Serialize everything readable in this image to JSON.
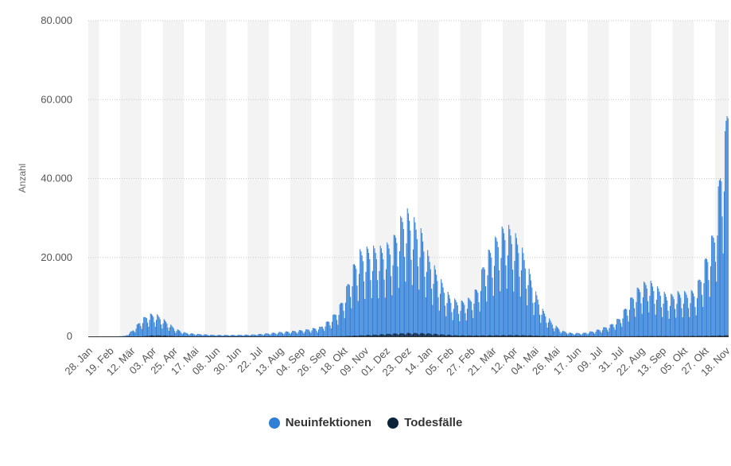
{
  "chart_data": {
    "type": "bar",
    "ylabel": "Anzahl",
    "ylim": [
      0,
      80000
    ],
    "y_ticks": [
      "0",
      "20.000",
      "40.000",
      "60.000",
      "80.000"
    ],
    "y_tick_values": [
      0,
      20000,
      40000,
      60000,
      80000
    ],
    "x_tick_labels": [
      "28. Jan",
      "19. Feb",
      "12. Mär",
      "03. Apr",
      "25. Apr",
      "17. Mai",
      "08. Jun",
      "30. Jun",
      "22. Jul",
      "13. Aug",
      "04. Sep",
      "26. Sep",
      "18. Okt",
      "09. Nov",
      "01. Dez",
      "23. Dez",
      "14. Jan",
      "05. Feb",
      "27. Feb",
      "21. Mär",
      "12. Apr",
      "04. Mai",
      "26. Mai",
      "17. Jun",
      "09. Jul",
      "31. Jul",
      "22. Aug",
      "13. Sep",
      "05. Okt",
      "27. Okt",
      "18. Nov"
    ],
    "x_ticks_every_days": 22,
    "total_days": 663,
    "grid": "alternating vertical bands, horizontal dotted gridlines",
    "legend_position": "bottom-center",
    "weekly_pattern": [
      0.72,
      1.0,
      0.97,
      0.92,
      0.85,
      0.62,
      0.42
    ],
    "series": [
      {
        "name": "Neuinfektionen",
        "color": "#2f7ed8",
        "weekly_peak_envelope": [
          [
            0,
            0
          ],
          [
            30,
            20
          ],
          [
            38,
            150
          ],
          [
            45,
            1500
          ],
          [
            55,
            4500
          ],
          [
            62,
            5800
          ],
          [
            70,
            5800
          ],
          [
            80,
            4000
          ],
          [
            90,
            2000
          ],
          [
            100,
            1000
          ],
          [
            110,
            700
          ],
          [
            130,
            400
          ],
          [
            150,
            400
          ],
          [
            170,
            500
          ],
          [
            185,
            800
          ],
          [
            200,
            1200
          ],
          [
            210,
            1400
          ],
          [
            225,
            1800
          ],
          [
            240,
            2500
          ],
          [
            250,
            4500
          ],
          [
            258,
            7000
          ],
          [
            265,
            11000
          ],
          [
            272,
            17000
          ],
          [
            280,
            22000
          ],
          [
            290,
            23000
          ],
          [
            305,
            23000
          ],
          [
            315,
            25000
          ],
          [
            322,
            30000
          ],
          [
            328,
            33000
          ],
          [
            335,
            31000
          ],
          [
            345,
            27000
          ],
          [
            352,
            21000
          ],
          [
            360,
            17000
          ],
          [
            368,
            13000
          ],
          [
            375,
            10000
          ],
          [
            385,
            9000
          ],
          [
            395,
            10000
          ],
          [
            403,
            13000
          ],
          [
            410,
            20000
          ],
          [
            418,
            24000
          ],
          [
            425,
            27000
          ],
          [
            432,
            29000
          ],
          [
            440,
            27000
          ],
          [
            447,
            24000
          ],
          [
            455,
            18000
          ],
          [
            462,
            12000
          ],
          [
            470,
            7000
          ],
          [
            480,
            3500
          ],
          [
            490,
            1500
          ],
          [
            500,
            900
          ],
          [
            512,
            900
          ],
          [
            522,
            1400
          ],
          [
            530,
            2000
          ],
          [
            540,
            3000
          ],
          [
            550,
            5000
          ],
          [
            558,
            8500
          ],
          [
            565,
            11500
          ],
          [
            572,
            13500
          ],
          [
            580,
            14500
          ],
          [
            590,
            12500
          ],
          [
            600,
            10500
          ],
          [
            610,
            11500
          ],
          [
            620,
            11500
          ],
          [
            628,
            12000
          ],
          [
            635,
            17000
          ],
          [
            642,
            23000
          ],
          [
            648,
            28000
          ],
          [
            652,
            38000
          ],
          [
            656,
            49000
          ],
          [
            659,
            52000
          ],
          [
            662,
            65000
          ]
        ]
      },
      {
        "name": "Todesfälle",
        "color": "#0d233a",
        "weekly_peak_envelope": [
          [
            0,
            0
          ],
          [
            55,
            20
          ],
          [
            65,
            250
          ],
          [
            75,
            250
          ],
          [
            90,
            80
          ],
          [
            110,
            20
          ],
          [
            250,
            20
          ],
          [
            265,
            80
          ],
          [
            280,
            250
          ],
          [
            300,
            500
          ],
          [
            315,
            750
          ],
          [
            330,
            900
          ],
          [
            340,
            900
          ],
          [
            352,
            800
          ],
          [
            365,
            550
          ],
          [
            380,
            300
          ],
          [
            400,
            250
          ],
          [
            420,
            300
          ],
          [
            440,
            350
          ],
          [
            455,
            300
          ],
          [
            470,
            150
          ],
          [
            490,
            50
          ],
          [
            530,
            20
          ],
          [
            560,
            50
          ],
          [
            580,
            100
          ],
          [
            610,
            100
          ],
          [
            640,
            150
          ],
          [
            662,
            300
          ]
        ]
      }
    ]
  }
}
